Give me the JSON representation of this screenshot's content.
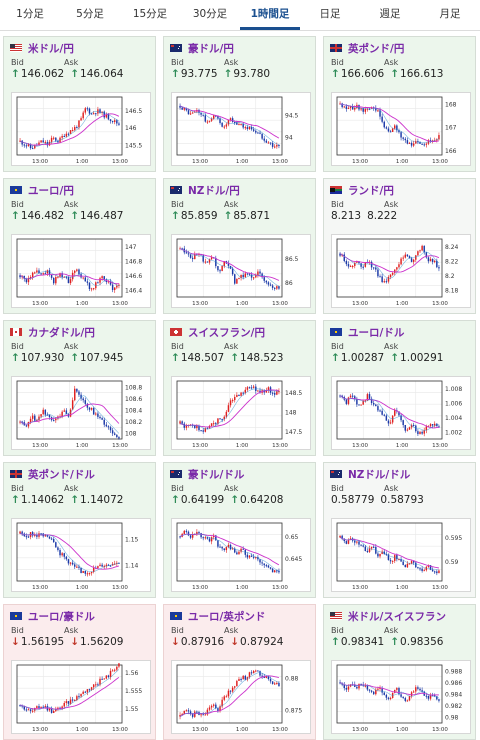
{
  "tabs": [
    {
      "label": "1分足",
      "active": false
    },
    {
      "label": "5分足",
      "active": false
    },
    {
      "label": "15分足",
      "active": false
    },
    {
      "label": "30分足",
      "active": false
    },
    {
      "label": "1時間足",
      "active": true
    },
    {
      "label": "日足",
      "active": false
    },
    {
      "label": "週足",
      "active": false
    },
    {
      "label": "月足",
      "active": false
    }
  ],
  "colors": {
    "accent": "#1a4f8f",
    "pair": "#7a2aa8",
    "up_candle": "#e02020",
    "down_candle": "#1c3aa8",
    "ma": "#cc33cc",
    "ma_blue": "#2288cc",
    "up_card": "#ecf6ec",
    "down_card": "#fbeced"
  },
  "labels": {
    "bid": "Bid",
    "ask": "Ask"
  },
  "cards": [
    {
      "pair": "米ドル/円",
      "flag": "us",
      "status": "up",
      "bid": "146.062",
      "ask": "146.064",
      "bid_dir": "up",
      "ask_dir": "up",
      "chart_data": {
        "type": "candlestick",
        "y_ticks": [
          "146.5",
          "146",
          "145.5"
        ],
        "ylim": [
          145.2,
          146.9
        ],
        "x_ticks": [
          "13:00",
          "1:00",
          "13:00"
        ],
        "trend": [
          145.6,
          145.5,
          145.4,
          145.5,
          145.6,
          145.5,
          145.7,
          145.6,
          145.8,
          145.9,
          146.0,
          146.2,
          146.6,
          146.4,
          146.5,
          146.4,
          146.3,
          146.2,
          146.1
        ]
      }
    },
    {
      "pair": "豪ドル/円",
      "flag": "au",
      "status": "up",
      "bid": "93.775",
      "ask": "93.780",
      "bid_dir": "up",
      "ask_dir": "up",
      "chart_data": {
        "type": "candlestick",
        "y_ticks": [
          "94.5",
          "94"
        ],
        "ylim": [
          93.6,
          94.9
        ],
        "x_ticks": [
          "13:00",
          "1:00",
          "13:00"
        ],
        "trend": [
          94.7,
          94.6,
          94.5,
          94.6,
          94.5,
          94.3,
          94.5,
          94.4,
          94.2,
          94.4,
          94.3,
          94.3,
          94.2,
          94.2,
          94.1,
          94.0,
          93.9,
          93.8,
          93.8
        ]
      }
    },
    {
      "pair": "英ポンド/円",
      "flag": "gb",
      "status": "up",
      "bid": "166.606",
      "ask": "166.613",
      "bid_dir": "up",
      "ask_dir": "up",
      "chart_data": {
        "type": "candlestick",
        "y_ticks": [
          "168",
          "167",
          "166"
        ],
        "ylim": [
          165.8,
          168.3
        ],
        "x_ticks": [
          "13:00",
          "1:00",
          "13:00"
        ],
        "trend": [
          168.0,
          167.9,
          167.8,
          167.9,
          167.7,
          167.8,
          167.9,
          167.6,
          167.0,
          166.8,
          167.0,
          166.6,
          166.4,
          166.3,
          166.4,
          166.3,
          166.4,
          166.5,
          166.6
        ]
      }
    },
    {
      "pair": "ユーロ/円",
      "flag": "eu",
      "status": "up",
      "bid": "146.482",
      "ask": "146.487",
      "bid_dir": "up",
      "ask_dir": "up",
      "chart_data": {
        "type": "candlestick",
        "y_ticks": [
          "147",
          "146.8",
          "146.6",
          "146.4"
        ],
        "ylim": [
          146.3,
          147.1
        ],
        "x_ticks": [
          "13:00",
          "1:00",
          "13:00"
        ],
        "trend": [
          146.6,
          146.5,
          146.6,
          146.7,
          146.6,
          146.7,
          146.5,
          146.6,
          146.6,
          146.5,
          146.7,
          146.6,
          146.5,
          146.4,
          146.5,
          146.6,
          146.5,
          146.4,
          146.5
        ]
      }
    },
    {
      "pair": "NZドル/円",
      "flag": "nz",
      "status": "up",
      "bid": "85.859",
      "ask": "85.871",
      "bid_dir": "up",
      "ask_dir": "up",
      "chart_data": {
        "type": "candlestick",
        "y_ticks": [
          "86.5",
          "86"
        ],
        "ylim": [
          85.7,
          86.9
        ],
        "x_ticks": [
          "13:00",
          "1:00",
          "13:00"
        ],
        "trend": [
          86.7,
          86.6,
          86.5,
          86.6,
          86.5,
          86.4,
          86.5,
          86.2,
          86.4,
          86.3,
          86.0,
          86.1,
          86.2,
          86.1,
          86.2,
          86.1,
          86.0,
          85.9,
          85.9
        ]
      }
    },
    {
      "pair": "ランド/円",
      "flag": "za",
      "status": "neutral",
      "bid": "8.213",
      "ask": "8.222",
      "bid_dir": "none",
      "ask_dir": "none",
      "chart_data": {
        "type": "candlestick",
        "y_ticks": [
          "8.24",
          "8.22",
          "8.2",
          "8.18"
        ],
        "ylim": [
          8.17,
          8.25
        ],
        "x_ticks": [
          "13:00",
          "1:00",
          "13:00"
        ],
        "trend": [
          8.23,
          8.22,
          8.21,
          8.22,
          8.21,
          8.22,
          8.21,
          8.2,
          8.19,
          8.2,
          8.21,
          8.22,
          8.23,
          8.22,
          8.23,
          8.24,
          8.22,
          8.22,
          8.21
        ]
      }
    },
    {
      "pair": "カナダドル/円",
      "flag": "ca",
      "status": "up",
      "bid": "107.930",
      "ask": "107.945",
      "bid_dir": "up",
      "ask_dir": "up",
      "chart_data": {
        "type": "candlestick",
        "y_ticks": [
          "108.8",
          "108.6",
          "108.4",
          "108.2",
          "108"
        ],
        "ylim": [
          107.9,
          108.9
        ],
        "x_ticks": [
          "13:00",
          "1:00",
          "13:00"
        ],
        "trend": [
          108.2,
          108.1,
          108.3,
          108.2,
          108.4,
          108.3,
          108.2,
          108.3,
          108.4,
          108.3,
          108.8,
          108.6,
          108.5,
          108.4,
          108.3,
          108.2,
          108.1,
          108.0,
          107.9
        ]
      }
    },
    {
      "pair": "スイスフラン/円",
      "flag": "ch",
      "status": "up",
      "bid": "148.507",
      "ask": "148.523",
      "bid_dir": "up",
      "ask_dir": "up",
      "chart_data": {
        "type": "candlestick",
        "y_ticks": [
          "148.5",
          "148",
          "147.5"
        ],
        "ylim": [
          147.3,
          148.8
        ],
        "x_ticks": [
          "13:00",
          "1:00",
          "13:00"
        ],
        "trend": [
          147.7,
          147.6,
          147.7,
          147.6,
          147.5,
          147.6,
          147.7,
          147.8,
          147.9,
          148.2,
          148.4,
          148.5,
          148.6,
          148.6,
          148.6,
          148.5,
          148.6,
          148.5,
          148.5
        ]
      }
    },
    {
      "pair": "ユーロ/ドル",
      "flag": "eu_us",
      "status": "up",
      "bid": "1.00287",
      "ask": "1.00291",
      "bid_dir": "up",
      "ask_dir": "up",
      "chart_data": {
        "type": "candlestick",
        "y_ticks": [
          "1.008",
          "1.006",
          "1.004",
          "1.002"
        ],
        "ylim": [
          1.001,
          1.009
        ],
        "x_ticks": [
          "13:00",
          "1:00",
          "13:00"
        ],
        "trend": [
          1.007,
          1.006,
          1.007,
          1.006,
          1.006,
          1.007,
          1.006,
          1.005,
          1.004,
          1.003,
          1.005,
          1.004,
          1.002,
          1.003,
          1.002,
          1.002,
          1.003,
          1.003,
          1.003
        ]
      }
    },
    {
      "pair": "英ポンド/ドル",
      "flag": "gb_us",
      "status": "up",
      "bid": "1.14062",
      "ask": "1.14072",
      "bid_dir": "up",
      "ask_dir": "up",
      "chart_data": {
        "type": "candlestick",
        "y_ticks": [
          "1.15",
          "1.14"
        ],
        "ylim": [
          1.134,
          1.156
        ],
        "x_ticks": [
          "13:00",
          "1:00",
          "13:00"
        ],
        "trend": [
          1.152,
          1.151,
          1.152,
          1.151,
          1.152,
          1.151,
          1.15,
          1.145,
          1.143,
          1.141,
          1.139,
          1.138,
          1.137,
          1.138,
          1.139,
          1.14,
          1.14,
          1.141,
          1.141
        ]
      }
    },
    {
      "pair": "豪ドル/ドル",
      "flag": "au_us",
      "status": "up",
      "bid": "0.64199",
      "ask": "0.64208",
      "bid_dir": "up",
      "ask_dir": "up",
      "chart_data": {
        "type": "candlestick",
        "y_ticks": [
          "0.65",
          "0.645"
        ],
        "ylim": [
          0.64,
          0.653
        ],
        "x_ticks": [
          "13:00",
          "1:00",
          "13:00"
        ],
        "trend": [
          0.65,
          0.651,
          0.65,
          0.651,
          0.65,
          0.649,
          0.65,
          0.648,
          0.647,
          0.648,
          0.646,
          0.647,
          0.646,
          0.645,
          0.645,
          0.644,
          0.643,
          0.642,
          0.642
        ]
      }
    },
    {
      "pair": "NZドル/ドル",
      "flag": "nz_us",
      "status": "neutral",
      "bid": "0.58779",
      "ask": "0.58793",
      "bid_dir": "none",
      "ask_dir": "none",
      "chart_data": {
        "type": "candlestick",
        "y_ticks": [
          "0.595",
          "0.59"
        ],
        "ylim": [
          0.586,
          0.598
        ],
        "x_ticks": [
          "13:00",
          "1:00",
          "13:00"
        ],
        "trend": [
          0.595,
          0.594,
          0.595,
          0.594,
          0.593,
          0.592,
          0.593,
          0.591,
          0.592,
          0.59,
          0.591,
          0.59,
          0.589,
          0.59,
          0.589,
          0.588,
          0.589,
          0.588,
          0.588
        ]
      }
    },
    {
      "pair": "ユーロ/豪ドル",
      "flag": "eu_au",
      "status": "down",
      "bid": "1.56195",
      "ask": "1.56209",
      "bid_dir": "down",
      "ask_dir": "down",
      "chart_data": {
        "type": "candlestick",
        "y_ticks": [
          "1.56",
          "1.555",
          "1.55"
        ],
        "ylim": [
          1.546,
          1.562
        ],
        "x_ticks": [
          "13:00",
          "1:00",
          "13:00"
        ],
        "trend": [
          1.551,
          1.55,
          1.549,
          1.55,
          1.551,
          1.55,
          1.549,
          1.55,
          1.551,
          1.552,
          1.553,
          1.554,
          1.555,
          1.556,
          1.557,
          1.558,
          1.559,
          1.561,
          1.562
        ]
      }
    },
    {
      "pair": "ユーロ/英ポンド",
      "flag": "eu_gb",
      "status": "down",
      "bid": "0.87916",
      "ask": "0.87924",
      "bid_dir": "down",
      "ask_dir": "down",
      "chart_data": {
        "type": "candlestick",
        "y_ticks": [
          "0.88",
          "0.875"
        ],
        "ylim": [
          0.873,
          0.882
        ],
        "x_ticks": [
          "13:00",
          "1:00",
          "13:00"
        ],
        "trend": [
          0.874,
          0.875,
          0.874,
          0.875,
          0.874,
          0.875,
          0.876,
          0.875,
          0.877,
          0.878,
          0.879,
          0.88,
          0.88,
          0.881,
          0.881,
          0.88,
          0.88,
          0.879,
          0.879
        ]
      }
    },
    {
      "pair": "米ドル/スイスフラン",
      "flag": "us_ch",
      "status": "up",
      "bid": "0.98341",
      "ask": "0.98356",
      "bid_dir": "up",
      "ask_dir": "up",
      "chart_data": {
        "type": "candlestick",
        "y_ticks": [
          "0.988",
          "0.986",
          "0.984",
          "0.982",
          "0.98"
        ],
        "ylim": [
          0.979,
          0.989
        ],
        "x_ticks": [
          "13:00",
          "1:00",
          "13:00"
        ],
        "trend": [
          0.986,
          0.985,
          0.986,
          0.985,
          0.986,
          0.985,
          0.984,
          0.985,
          0.984,
          0.983,
          0.985,
          0.984,
          0.983,
          0.984,
          0.985,
          0.984,
          0.983,
          0.984,
          0.983
        ]
      }
    }
  ]
}
